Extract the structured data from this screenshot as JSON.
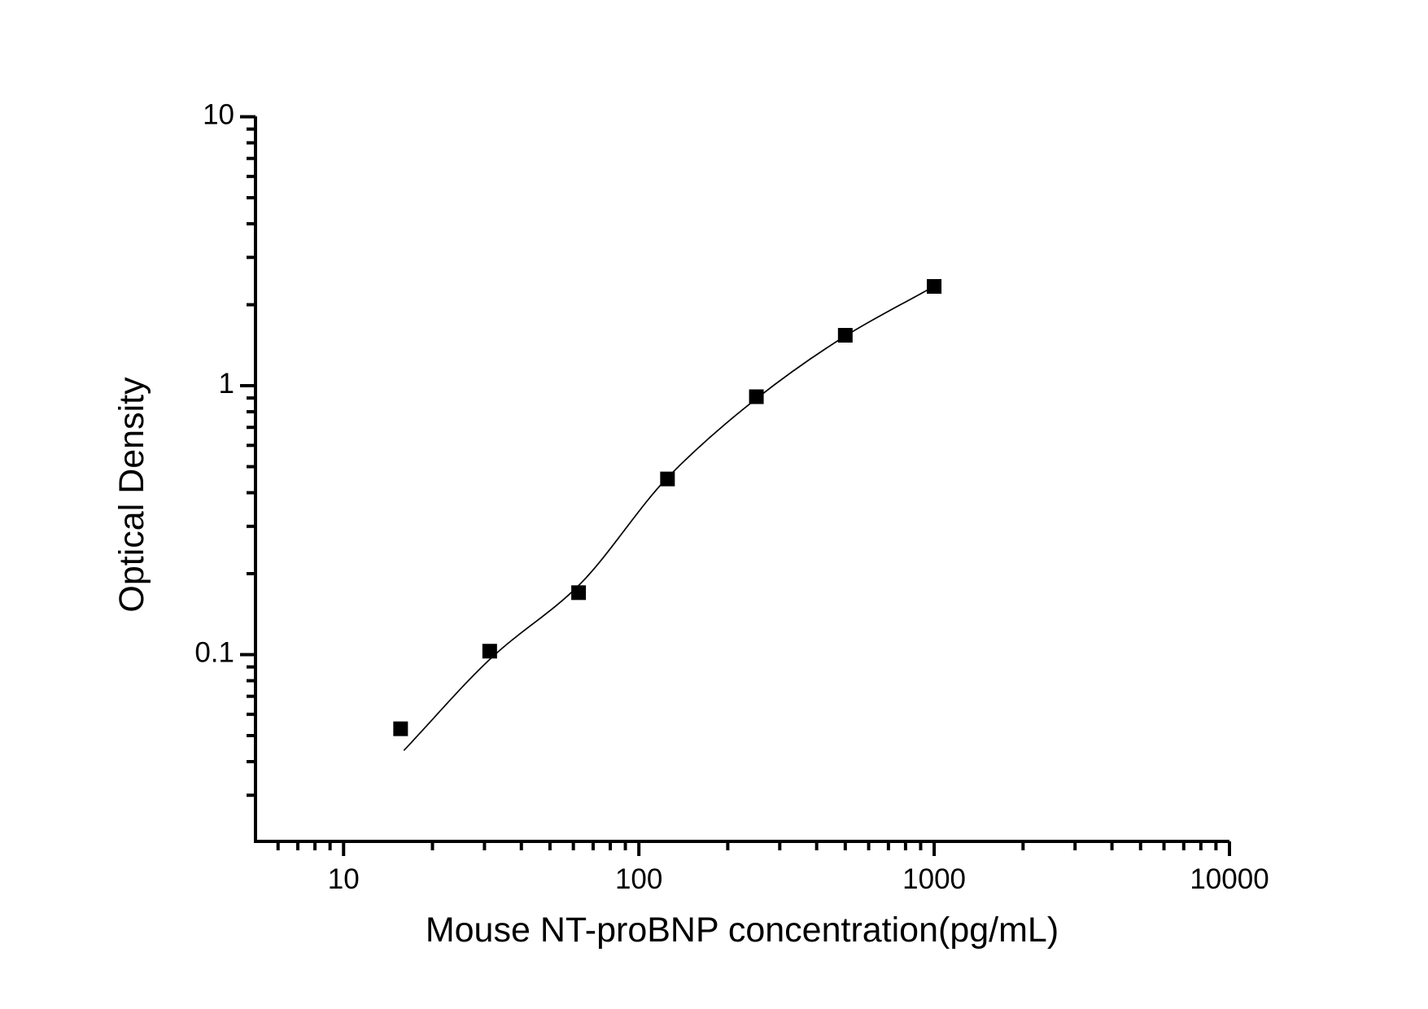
{
  "chart_data": {
    "type": "scatter",
    "title": "",
    "xlabel": "Mouse NT-proBNP concentration(pg/mL)",
    "ylabel": "Optical Density",
    "x_scale": "log",
    "y_scale": "log",
    "xlim": [
      5,
      10000
    ],
    "ylim": [
      0.02,
      10
    ],
    "x_tick_values": [
      10,
      100,
      1000,
      10000
    ],
    "x_tick_labels": [
      "10",
      "100",
      "1000",
      "10000"
    ],
    "y_tick_values": [
      10,
      1,
      0.1
    ],
    "y_tick_labels": [
      "10",
      "1",
      "0.1"
    ],
    "grid": false,
    "legend": false,
    "marker": "filled-square",
    "marker_color": "#000000",
    "line_color": "#000000",
    "points": [
      {
        "x": 15.6,
        "y": 0.053
      },
      {
        "x": 31.25,
        "y": 0.103
      },
      {
        "x": 62.5,
        "y": 0.17
      },
      {
        "x": 125,
        "y": 0.45
      },
      {
        "x": 250,
        "y": 0.91
      },
      {
        "x": 500,
        "y": 1.54
      },
      {
        "x": 1000,
        "y": 2.34
      }
    ],
    "fit_curve": [
      {
        "x": 16,
        "y": 0.044
      },
      {
        "x": 31.9,
        "y": 0.098
      },
      {
        "x": 62.3,
        "y": 0.18
      },
      {
        "x": 125,
        "y": 0.455
      },
      {
        "x": 250,
        "y": 0.895
      },
      {
        "x": 500,
        "y": 1.53
      },
      {
        "x": 956,
        "y": 2.28
      }
    ]
  }
}
